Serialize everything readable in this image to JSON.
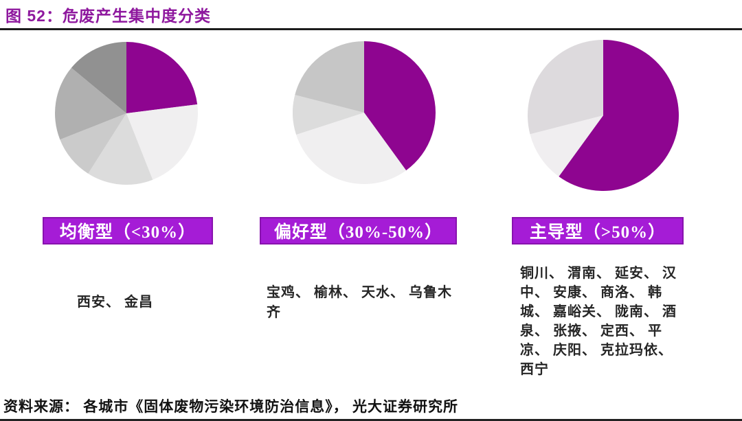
{
  "header": {
    "figure_label": "图 52：",
    "title": "危废产生集中度分类"
  },
  "colors": {
    "title_purple": "#8E189E",
    "banner_purple": "#A51CD6",
    "pie_accent_purple": "#8E0590",
    "rule_color": "#1c1c1c"
  },
  "chart_data": [
    {
      "type": "pie",
      "banner": "均衡型（<30%）",
      "description": "largest-city share below 30%, balanced distribution",
      "values": [
        23,
        21,
        15,
        10,
        17,
        14
      ],
      "colors": [
        "#8E0590",
        "#F0EFF0",
        "#DCDCDC",
        "#CBCBCB",
        "#B0B0B0",
        "#919191"
      ],
      "start_angle_deg": 0,
      "direction": "clockwise",
      "legend": "none",
      "cities": "西安、 金昌"
    },
    {
      "type": "pie",
      "banner": "偏好型（30%-50%）",
      "description": "largest-city share between 30% and 50%",
      "values": [
        40,
        30,
        9,
        21
      ],
      "colors": [
        "#8E0590",
        "#F0EFF0",
        "#DCDCDC",
        "#C6C6C6"
      ],
      "start_angle_deg": 0,
      "direction": "clockwise",
      "legend": "none",
      "cities": "宝鸡、 榆林、 天水、 乌鲁木齐"
    },
    {
      "type": "pie",
      "banner": "主导型（>50%）",
      "description": "largest-city share above 50%, dominant city",
      "values": [
        60,
        11,
        29
      ],
      "colors": [
        "#8E0590",
        "#F0EEF0",
        "#DDDADD"
      ],
      "start_angle_deg": 0,
      "direction": "clockwise",
      "legend": "none",
      "cities": "铜川、 渭南、 延安、 汉中、 安康、 商洛、 韩城、 嘉峪关、 陇南、 酒泉、 张掖、 定西、 平凉、 庆阳、 克拉玛依、 西宁"
    }
  ],
  "footer": {
    "source": "资料来源： 各城市《固体废物污染环境防治信息》， 光大证券研究所"
  }
}
